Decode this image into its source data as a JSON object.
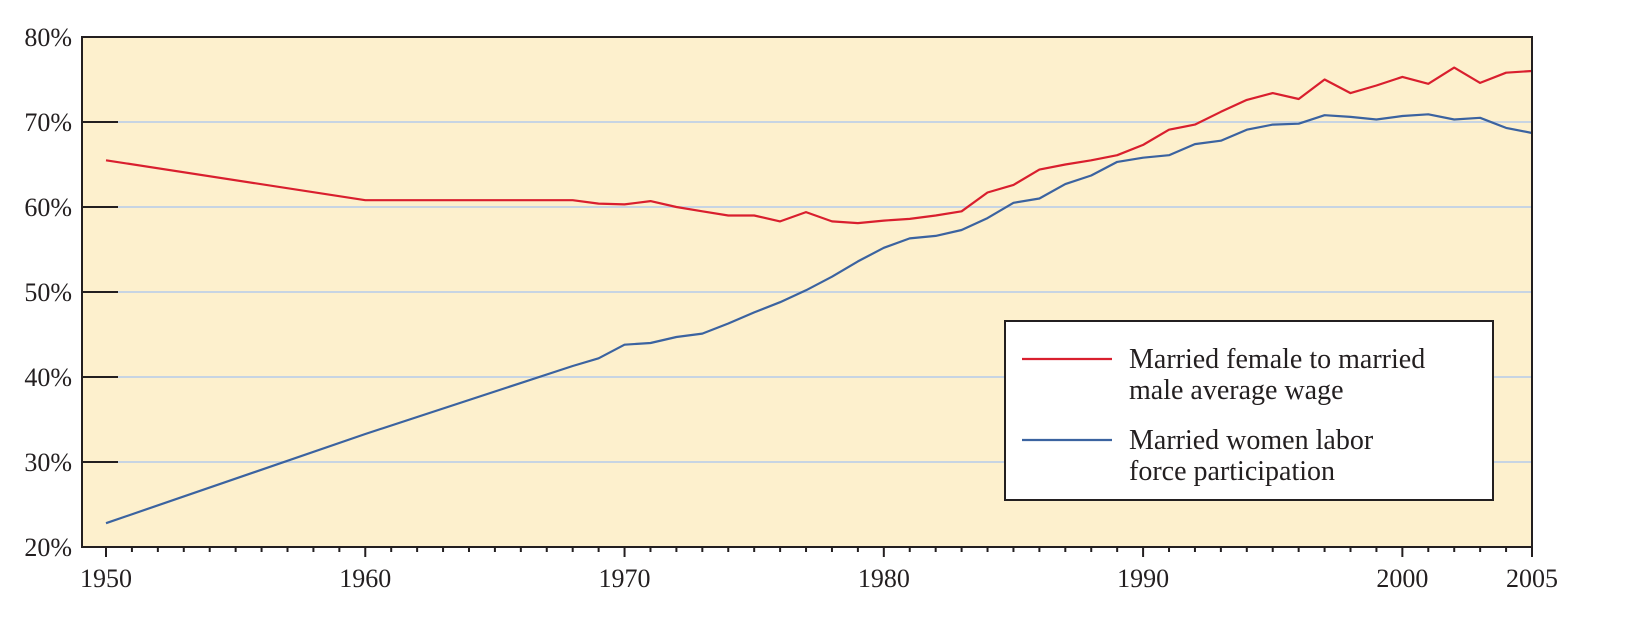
{
  "colors": {
    "plot_background": "#fdf0cd",
    "gridline": "#c7d4e3",
    "frame": "#231f20",
    "wage_series": "#d91f2e",
    "participation_series": "#3b63a0"
  },
  "chart_data": {
    "type": "line",
    "xlim": [
      1950,
      2005
    ],
    "ylim": [
      20,
      80
    ],
    "y_ticks": [
      {
        "value": 20,
        "label": "20%"
      },
      {
        "value": 30,
        "label": "30%"
      },
      {
        "value": 40,
        "label": "40%"
      },
      {
        "value": 50,
        "label": "50%"
      },
      {
        "value": 60,
        "label": "60%"
      },
      {
        "value": 70,
        "label": "70%"
      },
      {
        "value": 80,
        "label": "80%"
      }
    ],
    "x_ticks": [
      {
        "value": 1950,
        "label": "1950"
      },
      {
        "value": 1960,
        "label": "1960"
      },
      {
        "value": 1970,
        "label": "1970"
      },
      {
        "value": 1980,
        "label": "1980"
      },
      {
        "value": 1990,
        "label": "1990"
      },
      {
        "value": 2000,
        "label": "2000"
      },
      {
        "value": 2005,
        "label": "2005"
      }
    ],
    "grid": "horizontal",
    "legend_position": "bottom-right",
    "series": [
      {
        "name": "Married female to married male average wage",
        "legend_lines": [
          "Married female to married",
          "male average wage"
        ],
        "color_key": "wage_series",
        "points": [
          [
            1950,
            65.5
          ],
          [
            1960,
            60.8
          ],
          [
            1968,
            60.8
          ],
          [
            1969,
            60.4
          ],
          [
            1970,
            60.3
          ],
          [
            1971,
            60.7
          ],
          [
            1972,
            60.0
          ],
          [
            1973,
            59.5
          ],
          [
            1974,
            59.0
          ],
          [
            1975,
            59.0
          ],
          [
            1976,
            58.3
          ],
          [
            1977,
            59.4
          ],
          [
            1978,
            58.3
          ],
          [
            1979,
            58.1
          ],
          [
            1980,
            58.4
          ],
          [
            1981,
            58.6
          ],
          [
            1982,
            59.0
          ],
          [
            1983,
            59.5
          ],
          [
            1984,
            61.7
          ],
          [
            1985,
            62.6
          ],
          [
            1986,
            64.4
          ],
          [
            1987,
            65.0
          ],
          [
            1988,
            65.5
          ],
          [
            1989,
            66.1
          ],
          [
            1990,
            67.3
          ],
          [
            1991,
            69.1
          ],
          [
            1992,
            69.7
          ],
          [
            1993,
            71.2
          ],
          [
            1994,
            72.6
          ],
          [
            1995,
            73.4
          ],
          [
            1996,
            72.7
          ],
          [
            1997,
            75.0
          ],
          [
            1998,
            73.4
          ],
          [
            1999,
            74.3
          ],
          [
            2000,
            75.3
          ],
          [
            2001,
            74.5
          ],
          [
            2002,
            76.4
          ],
          [
            2003,
            74.6
          ],
          [
            2004,
            75.8
          ],
          [
            2005,
            76.0
          ]
        ]
      },
      {
        "name": "Married women labor force participation",
        "legend_lines": [
          "Married women labor",
          "force participation"
        ],
        "color_key": "participation_series",
        "points": [
          [
            1950,
            22.8
          ],
          [
            1960,
            33.3
          ],
          [
            1968,
            41.3
          ],
          [
            1969,
            42.2
          ],
          [
            1970,
            43.8
          ],
          [
            1971,
            44.0
          ],
          [
            1972,
            44.7
          ],
          [
            1973,
            45.1
          ],
          [
            1974,
            46.3
          ],
          [
            1975,
            47.6
          ],
          [
            1976,
            48.8
          ],
          [
            1977,
            50.2
          ],
          [
            1978,
            51.8
          ],
          [
            1979,
            53.6
          ],
          [
            1980,
            55.2
          ],
          [
            1981,
            56.3
          ],
          [
            1982,
            56.6
          ],
          [
            1983,
            57.3
          ],
          [
            1984,
            58.7
          ],
          [
            1985,
            60.5
          ],
          [
            1986,
            61.0
          ],
          [
            1987,
            62.7
          ],
          [
            1988,
            63.7
          ],
          [
            1989,
            65.3
          ],
          [
            1990,
            65.8
          ],
          [
            1991,
            66.1
          ],
          [
            1992,
            67.4
          ],
          [
            1993,
            67.8
          ],
          [
            1994,
            69.1
          ],
          [
            1995,
            69.7
          ],
          [
            1996,
            69.8
          ],
          [
            1997,
            70.8
          ],
          [
            1998,
            70.6
          ],
          [
            1999,
            70.3
          ],
          [
            2000,
            70.7
          ],
          [
            2001,
            70.9
          ],
          [
            2002,
            70.3
          ],
          [
            2003,
            70.5
          ],
          [
            2004,
            69.3
          ],
          [
            2005,
            68.7
          ]
        ]
      }
    ]
  }
}
